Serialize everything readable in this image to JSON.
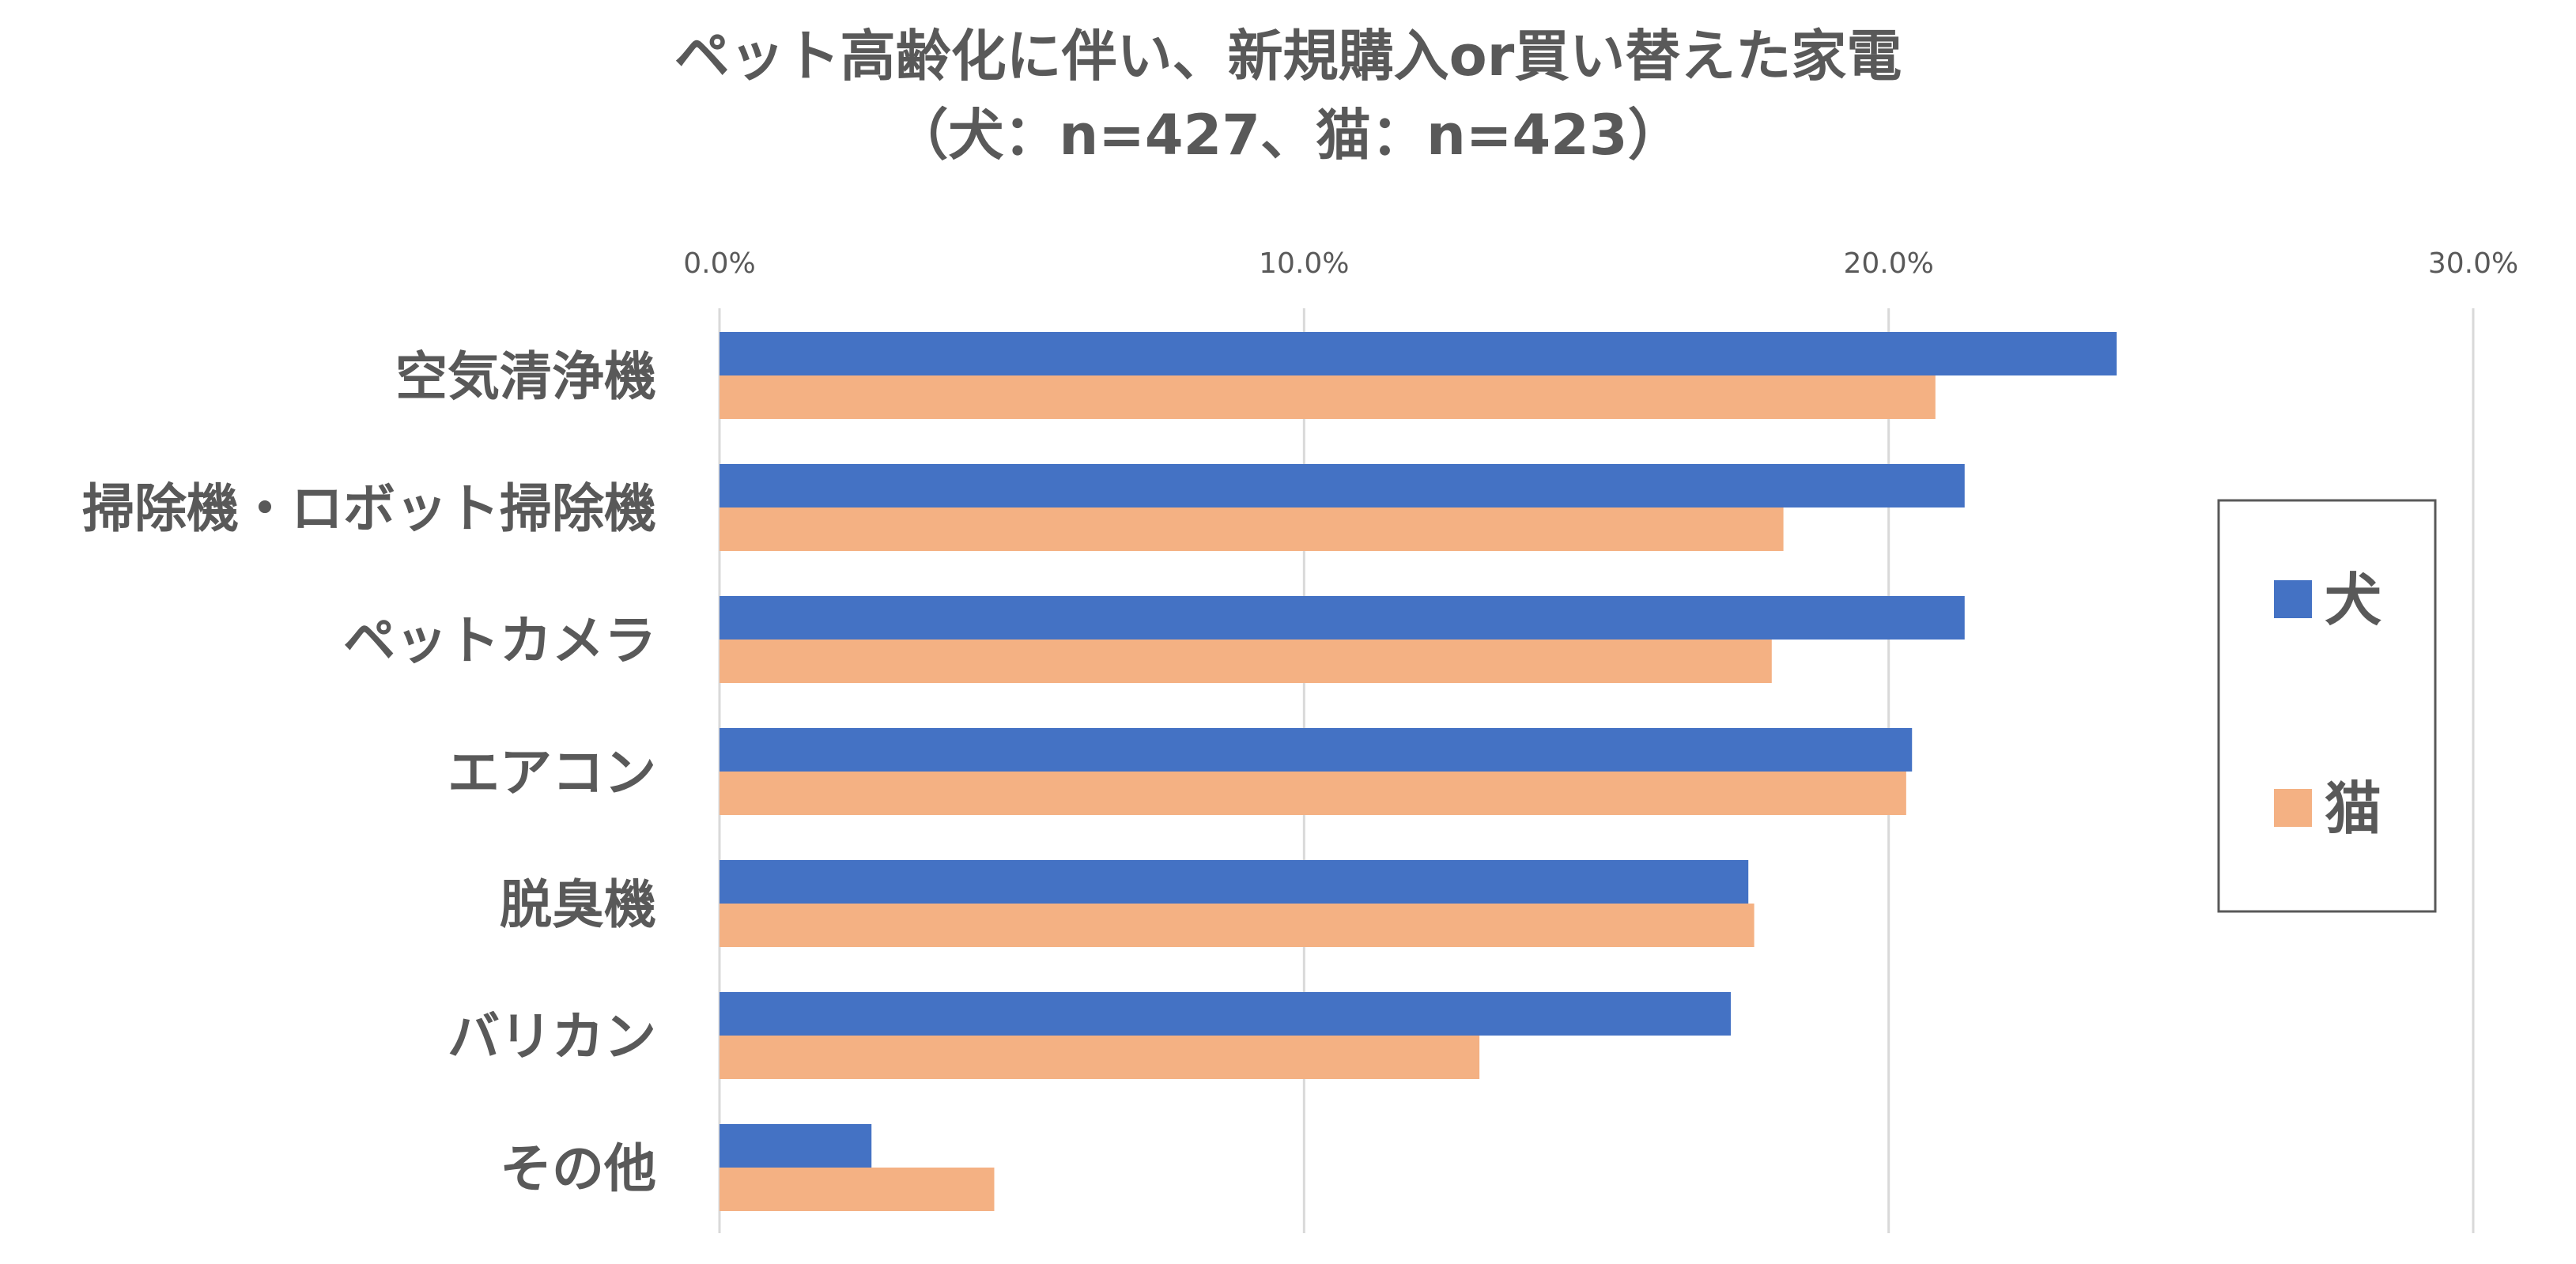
{
  "chart_data": {
    "type": "bar",
    "orientation": "horizontal",
    "title_lines": [
      "ペット高齢化に伴い、新規購入or買い替えた家電",
      "（犬：n=427、猫：n=423）"
    ],
    "categories": [
      "空気清浄機",
      "掃除機・ロボット掃除機",
      "ペットカメラ",
      "エアコン",
      "脱臭機",
      "バリカン",
      "その他"
    ],
    "series": [
      {
        "name": "犬",
        "color": "#4472C4",
        "values": [
          23.9,
          21.3,
          21.3,
          20.4,
          17.6,
          17.3,
          2.6
        ]
      },
      {
        "name": "猫",
        "color": "#F4B183",
        "values": [
          20.8,
          18.2,
          18.0,
          20.3,
          17.7,
          13.0,
          4.7
        ]
      }
    ],
    "xlim": [
      0,
      30
    ],
    "xticks": [
      "0.0%",
      "10.0%",
      "20.0%",
      "30.0%"
    ],
    "xtick_values": [
      0,
      10,
      20,
      30
    ],
    "x_axis_position": "top",
    "grid": true,
    "legend_position": "right",
    "text_color": "#595959",
    "grid_color": "#D9D9D9"
  }
}
